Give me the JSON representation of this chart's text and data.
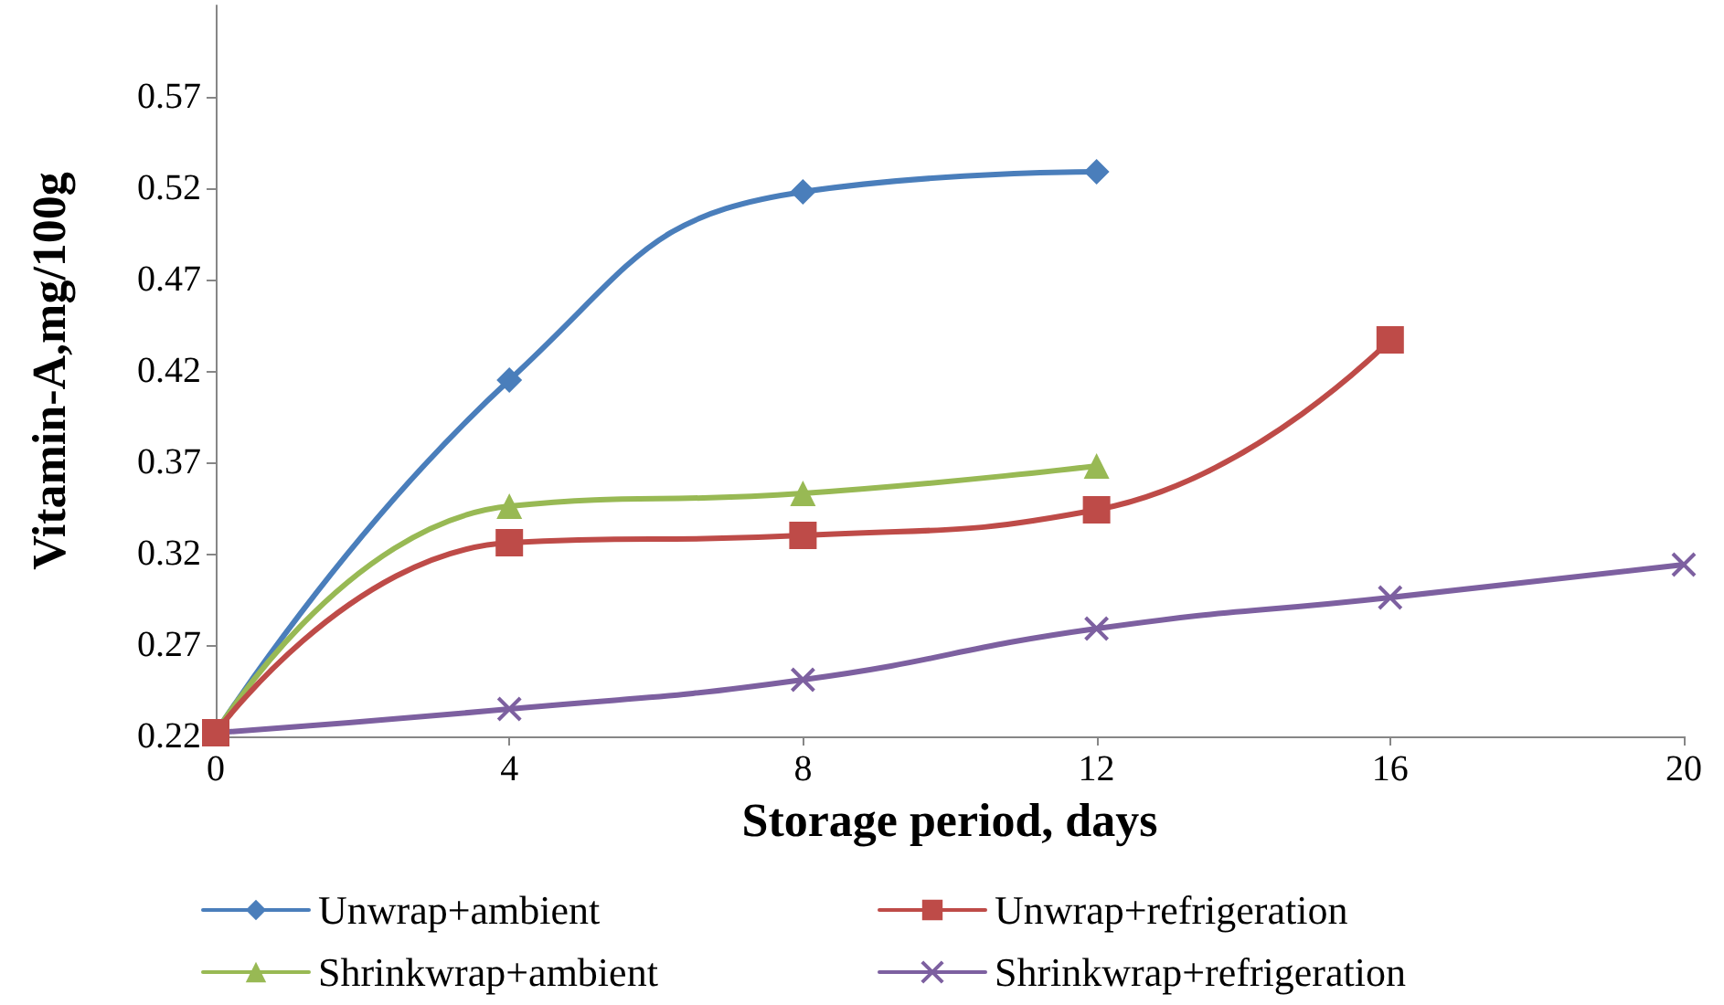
{
  "chart_data": {
    "type": "line",
    "xlabel": "Storage period, days",
    "ylabel": "Vitamin-A,mg/100g",
    "xlim": [
      0,
      20
    ],
    "xticks": [
      0,
      4,
      8,
      12,
      16,
      20
    ],
    "ylim": [
      0.22,
      0.62
    ],
    "yticks": [
      0.22,
      0.27,
      0.32,
      0.37,
      0.42,
      0.47,
      0.52,
      0.57
    ],
    "grid": false,
    "legend": "bottom",
    "line_style": "solid",
    "series": [
      {
        "name": "Unwrap+ambient",
        "color": "#4a7ebb",
        "marker": "diamond",
        "x": [
          0,
          4,
          8,
          12
        ],
        "values": [
          0.222,
          0.415,
          0.518,
          0.529
        ]
      },
      {
        "name": "Unwrap+refrigeration",
        "color": "#be4b48",
        "marker": "square",
        "x": [
          0,
          4,
          8,
          12,
          16
        ],
        "values": [
          0.222,
          0.326,
          0.33,
          0.344,
          0.437
        ]
      },
      {
        "name": "Shrinkwrap+ambient",
        "color": "#98b954",
        "marker": "triangle",
        "x": [
          0,
          4,
          8,
          12
        ],
        "values": [
          0.222,
          0.346,
          0.353,
          0.368
        ]
      },
      {
        "name": "Shrinkwrap+refrigeration",
        "color": "#7d60a0",
        "marker": "cross",
        "x": [
          0,
          4,
          8,
          12,
          16,
          20
        ],
        "values": [
          0.222,
          0.235,
          0.251,
          0.279,
          0.296,
          0.314
        ]
      }
    ]
  }
}
